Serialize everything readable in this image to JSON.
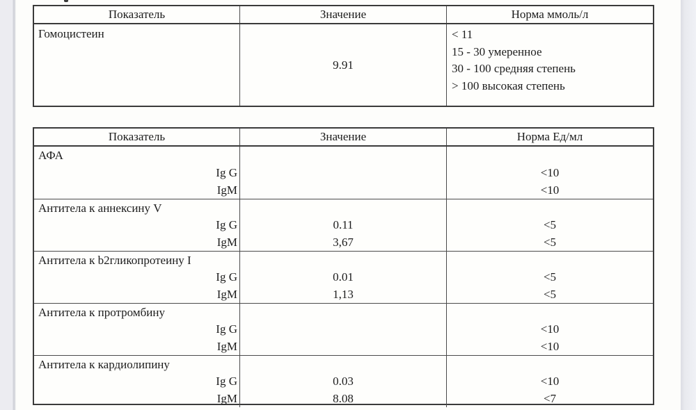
{
  "page": {
    "background_color": "#fdfdfb",
    "margin_color": "#ececf1",
    "border_color": "#3a3a3a"
  },
  "table1": {
    "headers": [
      "Показатель",
      "Значение",
      "Норма ммоль/л"
    ],
    "row": {
      "name": "Гомоцистеин",
      "value": "9.91",
      "norm_lines": [
        "< 11",
        "15 - 30 умеренное",
        "30 - 100 средняя степень",
        "> 100 высокая степень"
      ]
    }
  },
  "table2": {
    "headers": [
      "Показатель",
      "Значение",
      "Норма Ед/мл"
    ],
    "sections": [
      {
        "name": "АФА",
        "rows": [
          {
            "label": "Ig G",
            "value": "",
            "norm": "<10"
          },
          {
            "label": "IgM",
            "value": "",
            "norm": "<10"
          }
        ]
      },
      {
        "name": "Антитела к аннексину V",
        "rows": [
          {
            "label": "Ig G",
            "value": "0.11",
            "norm": "<5"
          },
          {
            "label": "IgM",
            "value": "3,67",
            "norm": "<5"
          }
        ]
      },
      {
        "name": "Антитела к b2гликопротеину I",
        "rows": [
          {
            "label": "Ig G",
            "value": "0.01",
            "norm": "<5"
          },
          {
            "label": "IgM",
            "value": "1,13",
            "norm": "<5"
          }
        ]
      },
      {
        "name": "Антитела к протромбину",
        "rows": [
          {
            "label": "Ig G",
            "value": "",
            "norm": "<10"
          },
          {
            "label": "IgM",
            "value": "",
            "norm": "<10"
          }
        ]
      },
      {
        "name": "Антитела к кардиолипину",
        "rows": [
          {
            "label": "Ig G",
            "value": "0.03",
            "norm": "<10"
          },
          {
            "label": "IgM",
            "value": "8.08",
            "norm": "<7"
          }
        ]
      }
    ]
  }
}
